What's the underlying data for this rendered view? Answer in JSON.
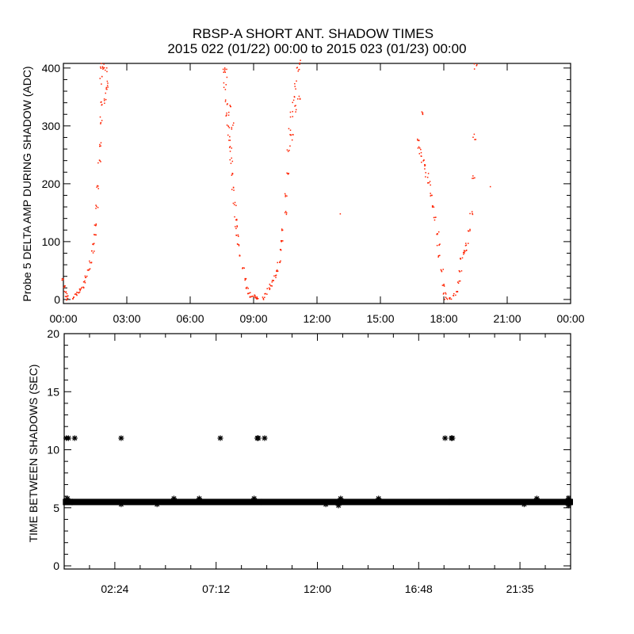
{
  "title_line1": "RBSP-A SHORT ANT. SHADOW TIMES",
  "title_line2": "2015 022 (01/22) 00:00 to 2015 023 (01/23) 00:00",
  "colors": {
    "top_points": "#ff2200",
    "bottom_points": "#000000",
    "axes": "#000000"
  },
  "chart_data": [
    {
      "type": "scatter",
      "title": "RBSP-A SHORT ANT. SHADOW TIMES",
      "xlabel": "",
      "ylabel": "Probe 5 DELTA AMP DURING SHADOW (ADC)",
      "xlim_hours": [
        0,
        24
      ],
      "ylim": [
        -7,
        408
      ],
      "x_tick_labels": [
        "00:00",
        "03:00",
        "06:00",
        "09:00",
        "12:00",
        "15:00",
        "18:00",
        "21:00",
        "00:00"
      ],
      "x_tick_values_hours": [
        0,
        3,
        6,
        9,
        12,
        15,
        18,
        21,
        24
      ],
      "y_ticks": [
        0,
        100,
        200,
        300,
        400
      ],
      "grid": false,
      "points_hours_adc": [
        [
          0.0,
          35
        ],
        [
          0.05,
          22
        ],
        [
          0.1,
          12
        ],
        [
          0.15,
          5
        ],
        [
          0.2,
          1
        ],
        [
          0.5,
          3
        ],
        [
          0.6,
          8
        ],
        [
          0.7,
          12
        ],
        [
          0.8,
          17
        ],
        [
          0.9,
          22
        ],
        [
          1.0,
          30
        ],
        [
          1.1,
          40
        ],
        [
          1.2,
          52
        ],
        [
          1.3,
          65
        ],
        [
          1.4,
          82
        ],
        [
          1.45,
          95
        ],
        [
          1.5,
          110
        ],
        [
          1.55,
          130
        ],
        [
          1.6,
          160
        ],
        [
          1.65,
          195
        ],
        [
          1.7,
          240
        ],
        [
          1.72,
          270
        ],
        [
          1.75,
          310
        ],
        [
          1.77,
          340
        ],
        [
          1.8,
          380
        ],
        [
          1.82,
          400
        ],
        [
          1.9,
          405
        ],
        [
          2.0,
          395
        ],
        [
          2.1,
          370
        ],
        [
          1.95,
          340
        ],
        [
          2.05,
          360
        ],
        [
          7.6,
          400
        ],
        [
          7.65,
          370
        ],
        [
          7.7,
          340
        ],
        [
          7.75,
          320
        ],
        [
          7.8,
          300
        ],
        [
          7.85,
          280
        ],
        [
          7.9,
          260
        ],
        [
          7.95,
          240
        ],
        [
          8.0,
          215
        ],
        [
          8.05,
          190
        ],
        [
          8.1,
          165
        ],
        [
          8.15,
          140
        ],
        [
          8.2,
          125
        ],
        [
          8.25,
          110
        ],
        [
          8.3,
          95
        ],
        [
          8.4,
          75
        ],
        [
          8.5,
          55
        ],
        [
          8.6,
          35
        ],
        [
          8.7,
          20
        ],
        [
          8.8,
          10
        ],
        [
          8.9,
          5
        ],
        [
          9.0,
          6
        ],
        [
          9.1,
          4
        ],
        [
          9.2,
          2
        ],
        [
          7.9,
          330
        ],
        [
          8.0,
          300
        ],
        [
          7.7,
          390
        ],
        [
          9.5,
          2
        ],
        [
          9.6,
          10
        ],
        [
          9.7,
          18
        ],
        [
          9.8,
          25
        ],
        [
          9.9,
          32
        ],
        [
          10.0,
          40
        ],
        [
          10.1,
          50
        ],
        [
          10.2,
          65
        ],
        [
          10.3,
          85
        ],
        [
          10.35,
          100
        ],
        [
          10.4,
          120
        ],
        [
          10.5,
          150
        ],
        [
          10.55,
          180
        ],
        [
          10.6,
          220
        ],
        [
          10.65,
          260
        ],
        [
          10.7,
          290
        ],
        [
          10.8,
          320
        ],
        [
          10.9,
          345
        ],
        [
          11.0,
          370
        ],
        [
          11.1,
          395
        ],
        [
          11.2,
          405
        ],
        [
          10.8,
          280
        ],
        [
          11.0,
          330
        ],
        [
          11.15,
          350
        ],
        [
          16.8,
          280
        ],
        [
          16.85,
          260
        ],
        [
          16.9,
          250
        ],
        [
          16.95,
          320
        ],
        [
          17.0,
          240
        ],
        [
          17.1,
          230
        ],
        [
          17.2,
          215
        ],
        [
          17.3,
          200
        ],
        [
          17.4,
          180
        ],
        [
          17.5,
          160
        ],
        [
          17.6,
          140
        ],
        [
          17.7,
          115
        ],
        [
          17.75,
          95
        ],
        [
          17.8,
          75
        ],
        [
          17.9,
          50
        ],
        [
          18.0,
          25
        ],
        [
          18.05,
          10
        ],
        [
          18.1,
          2
        ],
        [
          18.3,
          2
        ],
        [
          18.5,
          8
        ],
        [
          18.6,
          15
        ],
        [
          18.7,
          30
        ],
        [
          18.8,
          50
        ],
        [
          18.85,
          70
        ],
        [
          18.9,
          80
        ],
        [
          19.0,
          85
        ],
        [
          19.1,
          95
        ],
        [
          19.2,
          120
        ],
        [
          19.3,
          150
        ],
        [
          19.4,
          210
        ],
        [
          19.45,
          280
        ],
        [
          19.5,
          400
        ],
        [
          13.1,
          148
        ],
        [
          20.2,
          195
        ]
      ]
    },
    {
      "type": "scatter",
      "xlabel": "",
      "ylabel": "TIME BETWEEN SHADOWS (SEC)",
      "xlim_hours": [
        0,
        24
      ],
      "ylim": [
        0,
        20
      ],
      "x_tick_labels": [
        "02:24",
        "07:12",
        "12:00",
        "16:48",
        "21:35"
      ],
      "x_tick_values_hours": [
        2.4,
        7.2,
        12.0,
        16.8,
        21.6
      ],
      "y_ticks": [
        0,
        5,
        10,
        15,
        20
      ],
      "grid": false,
      "main_band_value_sec": 5.5,
      "main_band_ranges_hours": [
        [
          0.05,
          0.3
        ],
        [
          0.45,
          9.25
        ],
        [
          9.45,
          18.15
        ],
        [
          18.35,
          24
        ]
      ],
      "band_outlier_points": [
        [
          0.15,
          5.8
        ],
        [
          2.7,
          5.3
        ],
        [
          4.4,
          5.3
        ],
        [
          5.2,
          5.8
        ],
        [
          6.4,
          5.8
        ],
        [
          9.0,
          5.8
        ],
        [
          12.4,
          5.3
        ],
        [
          13.0,
          5.2
        ],
        [
          13.1,
          5.8
        ],
        [
          14.9,
          5.8
        ],
        [
          21.8,
          5.3
        ],
        [
          22.4,
          5.8
        ],
        [
          23.9,
          5.8
        ],
        [
          23.9,
          5.2
        ]
      ],
      "outlier_points_hours_sec": [
        [
          0.1,
          11
        ],
        [
          0.2,
          11
        ],
        [
          0.5,
          11
        ],
        [
          2.7,
          11
        ],
        [
          7.4,
          11
        ],
        [
          9.15,
          11
        ],
        [
          9.2,
          11
        ],
        [
          9.5,
          11
        ],
        [
          18.05,
          11
        ],
        [
          18.35,
          11
        ],
        [
          18.4,
          11
        ]
      ]
    }
  ]
}
